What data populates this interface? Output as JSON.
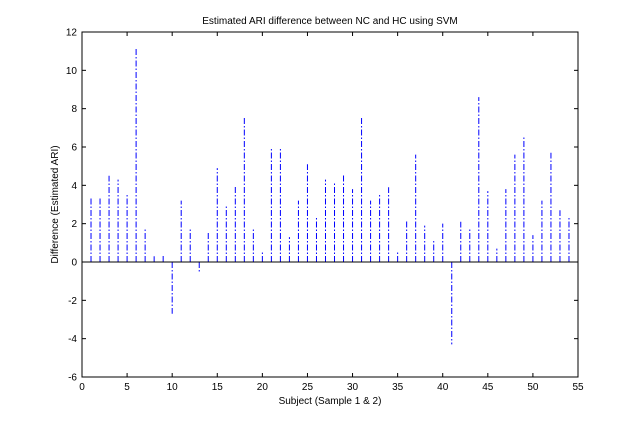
{
  "chart_data": {
    "type": "bar",
    "title": "Estimated ARI difference between NC and HC using SVM",
    "xlabel": "Subject (Sample 1 & 2)",
    "ylabel": "Difference (Estimated ARI)",
    "xlim": [
      0,
      55
    ],
    "ylim": [
      -6,
      12
    ],
    "xticks": [
      0,
      5,
      10,
      15,
      20,
      25,
      30,
      35,
      40,
      45,
      50,
      55
    ],
    "yticks": [
      -6,
      -4,
      -2,
      0,
      2,
      4,
      6,
      8,
      10,
      12
    ],
    "grid": false,
    "legend": "none",
    "baseline": 0,
    "stem_color": "#0000ff",
    "stem_style": "dash-dot",
    "x": [
      1,
      2,
      3,
      4,
      5,
      6,
      7,
      8,
      9,
      10,
      11,
      12,
      13,
      14,
      15,
      16,
      17,
      18,
      19,
      20,
      21,
      22,
      23,
      24,
      25,
      26,
      27,
      28,
      29,
      30,
      31,
      32,
      33,
      34,
      35,
      36,
      37,
      38,
      39,
      40,
      41,
      42,
      43,
      44,
      45,
      46,
      47,
      48,
      49,
      50,
      51,
      52,
      53,
      54
    ],
    "values": [
      3.4,
      3.4,
      4.5,
      4.3,
      3.6,
      11.2,
      1.8,
      0.3,
      0.4,
      -2.7,
      3.2,
      1.7,
      -0.5,
      1.6,
      4.9,
      2.9,
      4.0,
      7.6,
      1.8,
      0.6,
      6.0,
      6.0,
      1.3,
      3.2,
      5.1,
      2.3,
      4.3,
      4.1,
      4.6,
      3.8,
      7.6,
      3.2,
      3.6,
      3.9,
      0.5,
      2.2,
      5.6,
      1.9,
      1.2,
      2.0,
      -4.3,
      2.1,
      1.8,
      8.6,
      3.7,
      0.7,
      3.8,
      5.6,
      6.6,
      1.4,
      3.2,
      5.7,
      2.7,
      2.4
    ]
  }
}
